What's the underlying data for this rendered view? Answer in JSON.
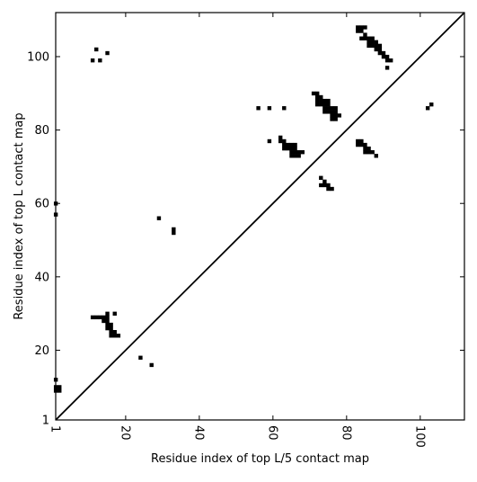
{
  "chart_data": {
    "type": "scatter",
    "title": "",
    "xlabel": "Residue index of top L/5 contact map",
    "ylabel": "Residue index of top L contact map",
    "xlim": [
      1,
      112
    ],
    "ylim": [
      1,
      112
    ],
    "xticks": [
      1,
      20,
      40,
      60,
      80,
      100
    ],
    "yticks": [
      1,
      20,
      40,
      60,
      80,
      100
    ],
    "grid": false,
    "legend": "none",
    "marker_color": "#000000",
    "diagonal": true,
    "upper_points": [
      [
        83,
        108
      ],
      [
        84,
        108
      ],
      [
        85,
        108
      ],
      [
        83,
        107
      ],
      [
        84,
        107
      ],
      [
        85,
        106
      ],
      [
        84,
        105
      ],
      [
        85,
        105
      ],
      [
        86,
        105
      ],
      [
        87,
        105
      ],
      [
        86,
        104
      ],
      [
        87,
        104
      ],
      [
        88,
        104
      ],
      [
        86,
        103
      ],
      [
        87,
        103
      ],
      [
        88,
        103
      ],
      [
        89,
        103
      ],
      [
        88,
        102
      ],
      [
        89,
        102
      ],
      [
        89,
        101
      ],
      [
        90,
        101
      ],
      [
        90,
        100
      ],
      [
        91,
        100
      ],
      [
        91,
        99
      ],
      [
        92,
        99
      ],
      [
        91,
        97
      ],
      [
        71,
        90
      ],
      [
        72,
        90
      ],
      [
        72,
        89
      ],
      [
        73,
        89
      ],
      [
        72,
        88
      ],
      [
        73,
        88
      ],
      [
        74,
        88
      ],
      [
        75,
        88
      ],
      [
        72,
        87
      ],
      [
        73,
        87
      ],
      [
        74,
        87
      ],
      [
        75,
        87
      ],
      [
        74,
        86
      ],
      [
        75,
        86
      ],
      [
        76,
        86
      ],
      [
        77,
        86
      ],
      [
        74,
        85
      ],
      [
        75,
        85
      ],
      [
        76,
        85
      ],
      [
        77,
        85
      ],
      [
        76,
        84
      ],
      [
        77,
        84
      ],
      [
        78,
        84
      ],
      [
        76,
        83
      ],
      [
        77,
        83
      ],
      [
        56,
        86
      ],
      [
        59,
        86
      ],
      [
        63,
        86
      ],
      [
        59,
        77
      ],
      [
        62,
        78
      ],
      [
        62,
        77
      ],
      [
        63,
        77
      ],
      [
        63,
        76
      ],
      [
        64,
        76
      ],
      [
        65,
        76
      ],
      [
        66,
        76
      ],
      [
        63,
        75
      ],
      [
        64,
        75
      ],
      [
        65,
        75
      ],
      [
        66,
        75
      ],
      [
        65,
        74
      ],
      [
        66,
        74
      ],
      [
        67,
        74
      ],
      [
        68,
        74
      ],
      [
        65,
        73
      ],
      [
        66,
        73
      ],
      [
        67,
        73
      ],
      [
        83,
        77
      ],
      [
        84,
        77
      ],
      [
        83,
        76
      ],
      [
        84,
        76
      ],
      [
        85,
        76
      ],
      [
        85,
        75
      ],
      [
        86,
        75
      ],
      [
        85,
        74
      ],
      [
        86,
        74
      ],
      [
        87,
        74
      ],
      [
        88,
        73
      ],
      [
        73,
        67
      ],
      [
        74,
        66
      ],
      [
        73,
        65
      ],
      [
        74,
        65
      ],
      [
        75,
        65
      ],
      [
        75,
        64
      ],
      [
        76,
        64
      ],
      [
        102,
        86
      ],
      [
        103,
        87
      ]
    ],
    "lower_points": [
      [
        12,
        102
      ],
      [
        15,
        101
      ],
      [
        11,
        99
      ],
      [
        13,
        99
      ],
      [
        1,
        60
      ],
      [
        1,
        57
      ],
      [
        29,
        56
      ],
      [
        33,
        53
      ],
      [
        33,
        52
      ],
      [
        11,
        29
      ],
      [
        12,
        29
      ],
      [
        13,
        29
      ],
      [
        14,
        29
      ],
      [
        15,
        29
      ],
      [
        15,
        30
      ],
      [
        17,
        30
      ],
      [
        14,
        28
      ],
      [
        15,
        28
      ],
      [
        15,
        27
      ],
      [
        16,
        27
      ],
      [
        15,
        26
      ],
      [
        16,
        26
      ],
      [
        16,
        25
      ],
      [
        17,
        25
      ],
      [
        16,
        24
      ],
      [
        17,
        24
      ],
      [
        18,
        24
      ],
      [
        24,
        18
      ],
      [
        27,
        16
      ],
      [
        1,
        12
      ],
      [
        1,
        10
      ],
      [
        2,
        10
      ],
      [
        1,
        9
      ],
      [
        2,
        9
      ]
    ]
  }
}
